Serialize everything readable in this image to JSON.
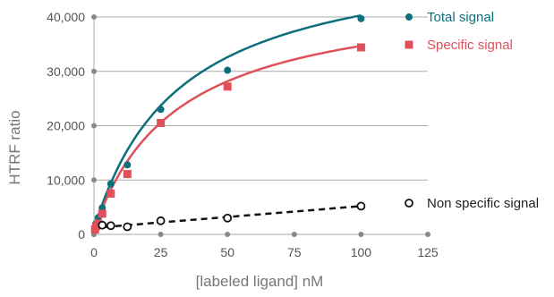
{
  "chart_data": {
    "type": "scatter",
    "xlabel": "[labeled ligand] nM",
    "ylabel": "HTRF ratio",
    "xlim": [
      0,
      125
    ],
    "ylim": [
      0,
      40000
    ],
    "x_ticks": [
      "0",
      "25",
      "50",
      "75",
      "100",
      "125"
    ],
    "y_ticks": [
      "0",
      "10,000",
      "20,000",
      "30,000",
      "40,000"
    ],
    "grid": "horizontal",
    "legend_position": "right",
    "series": [
      {
        "name": "Total signal",
        "marker": "circle-filled",
        "color": "#0e6f7c",
        "points": [
          {
            "x": 0.4,
            "y": 1200
          },
          {
            "x": 0.8,
            "y": 2000
          },
          {
            "x": 1.6,
            "y": 3100
          },
          {
            "x": 3.1,
            "y": 4900
          },
          {
            "x": 6.3,
            "y": 9300
          },
          {
            "x": 12.5,
            "y": 12800
          },
          {
            "x": 25,
            "y": 23000
          },
          {
            "x": 50,
            "y": 30200
          },
          {
            "x": 100,
            "y": 39700
          }
        ],
        "fit": "solid"
      },
      {
        "name": "Specific signal",
        "marker": "square-filled",
        "color": "#e0505a",
        "points": [
          {
            "x": 0.4,
            "y": 900
          },
          {
            "x": 0.8,
            "y": 1500
          },
          {
            "x": 1.6,
            "y": 2000
          },
          {
            "x": 3.1,
            "y": 3800
          },
          {
            "x": 6.3,
            "y": 7500
          },
          {
            "x": 12.5,
            "y": 11100
          },
          {
            "x": 25,
            "y": 20500
          },
          {
            "x": 50,
            "y": 27200
          },
          {
            "x": 100,
            "y": 34400
          }
        ],
        "fit": "solid"
      },
      {
        "name": "Non specific signal",
        "marker": "circle-open",
        "color": "#111111",
        "points": [
          {
            "x": 3.1,
            "y": 1700
          },
          {
            "x": 6.3,
            "y": 1600
          },
          {
            "x": 12.5,
            "y": 1400
          },
          {
            "x": 25,
            "y": 2500
          },
          {
            "x": 50,
            "y": 3000
          },
          {
            "x": 100,
            "y": 5200
          }
        ],
        "fit": "dashed"
      }
    ],
    "colors": {
      "grid": "#aaaaaa",
      "axis_dots": "#888888"
    }
  }
}
